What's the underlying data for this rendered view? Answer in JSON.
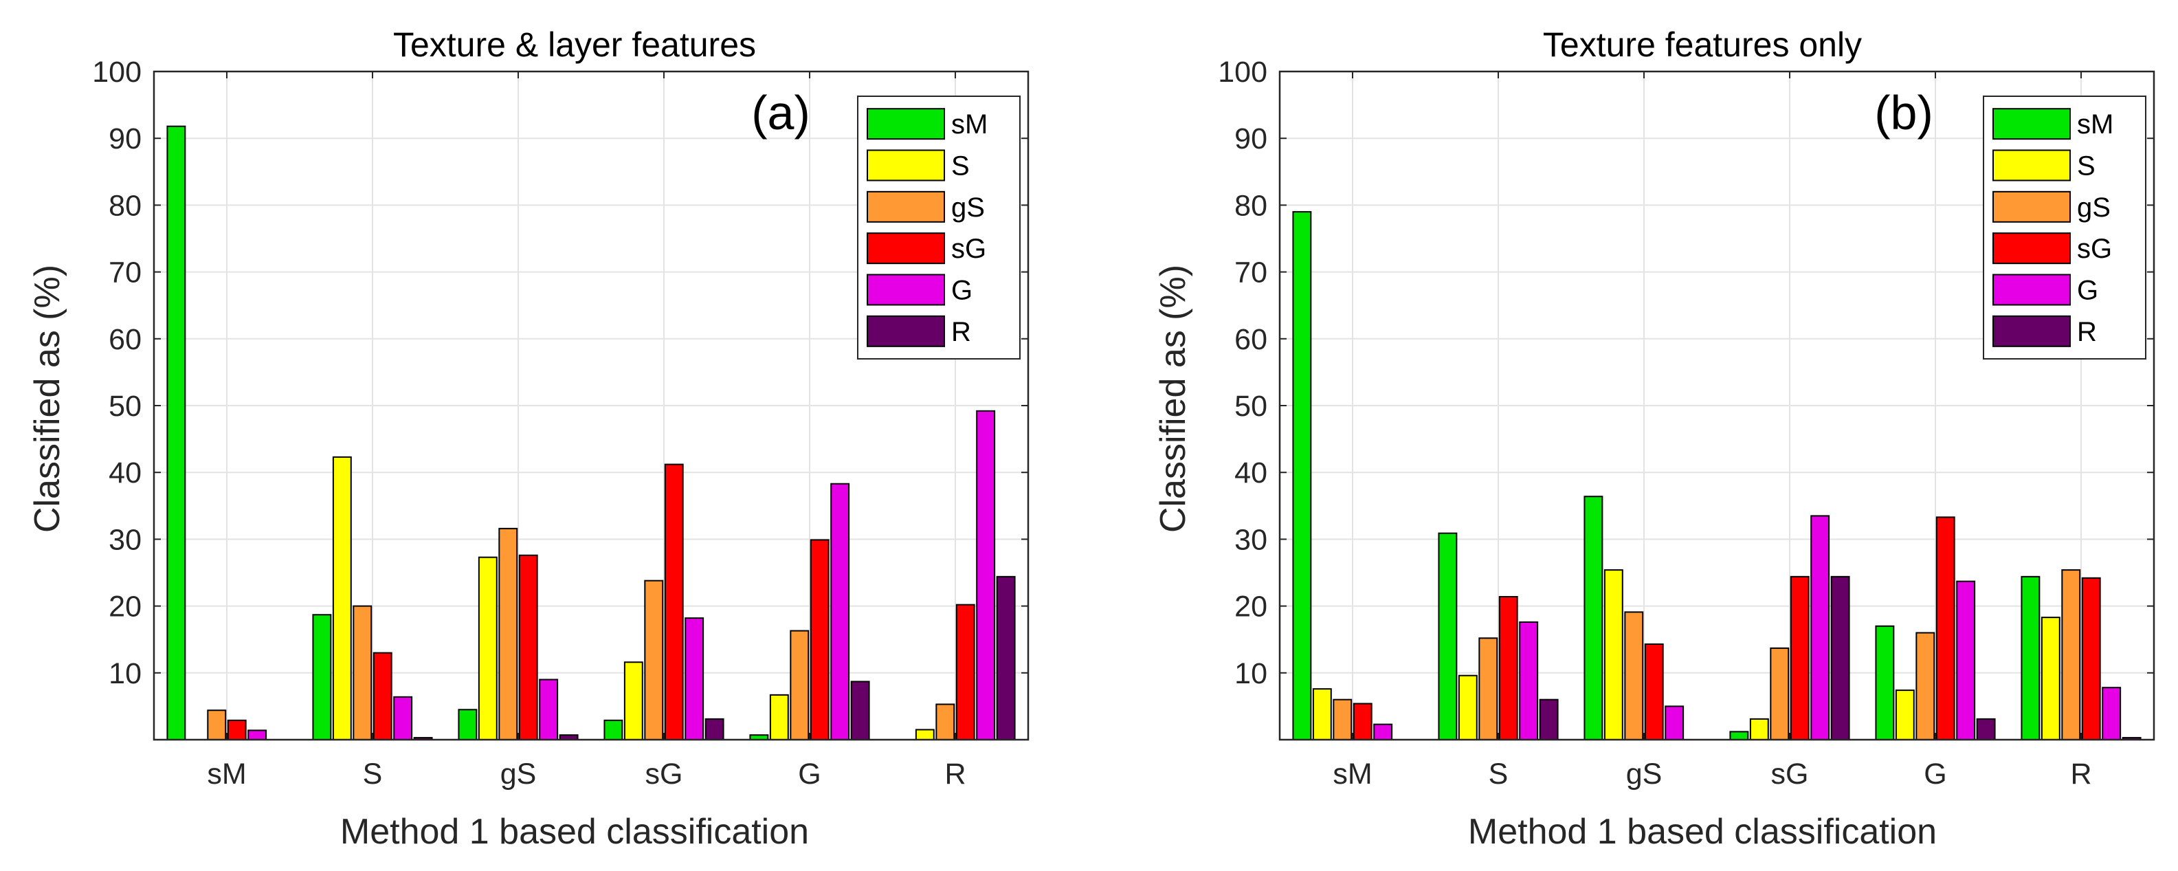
{
  "chart_data": [
    {
      "type": "bar",
      "title": "Texture & layer features",
      "panel_label": "(a)",
      "xlabel": "Method 1 based classification",
      "ylabel": "Classified as (%)",
      "ylim": [
        0,
        100
      ],
      "yticks": [
        10,
        20,
        30,
        40,
        50,
        60,
        70,
        80,
        90,
        100
      ],
      "grid": true,
      "legend_position": "top-right",
      "categories": [
        "sM",
        "S",
        "gS",
        "sG",
        "G",
        "R"
      ],
      "series": [
        {
          "name": "sM",
          "color": "#00e600",
          "values": [
            91.8,
            18.7,
            4.5,
            2.9,
            0.7,
            0
          ]
        },
        {
          "name": "S",
          "color": "#ffff00",
          "values": [
            0,
            42.3,
            27.3,
            11.6,
            6.7,
            1.5
          ]
        },
        {
          "name": "gS",
          "color": "#ff9933",
          "values": [
            4.4,
            20.0,
            31.6,
            23.8,
            16.3,
            5.3
          ]
        },
        {
          "name": "sG",
          "color": "#ff0000",
          "values": [
            2.9,
            13.0,
            27.6,
            41.2,
            29.9,
            20.2
          ]
        },
        {
          "name": "G",
          "color": "#e600e6",
          "values": [
            1.4,
            6.4,
            9.0,
            18.2,
            38.3,
            49.2
          ]
        },
        {
          "name": "R",
          "color": "#660066",
          "values": [
            0,
            0.3,
            0.7,
            3.1,
            8.7,
            24.4
          ]
        }
      ]
    },
    {
      "type": "bar",
      "title": "Texture features only",
      "panel_label": "(b)",
      "xlabel": "Method 1 based classification",
      "ylabel": "Classified as (%)",
      "ylim": [
        0,
        100
      ],
      "yticks": [
        10,
        20,
        30,
        40,
        50,
        60,
        70,
        80,
        90,
        100
      ],
      "grid": true,
      "legend_position": "top-right",
      "categories": [
        "sM",
        "S",
        "gS",
        "sG",
        "G",
        "R"
      ],
      "series": [
        {
          "name": "sM",
          "color": "#00e600",
          "values": [
            79.0,
            30.9,
            36.4,
            1.2,
            17.0,
            24.4
          ]
        },
        {
          "name": "S",
          "color": "#ffff00",
          "values": [
            7.6,
            9.6,
            25.4,
            3.1,
            7.4,
            18.3
          ]
        },
        {
          "name": "gS",
          "color": "#ff9933",
          "values": [
            6.0,
            15.2,
            19.1,
            13.7,
            16.0,
            25.4
          ]
        },
        {
          "name": "sG",
          "color": "#ff0000",
          "values": [
            5.4,
            21.4,
            14.3,
            24.4,
            33.3,
            24.2
          ]
        },
        {
          "name": "G",
          "color": "#e600e6",
          "values": [
            2.3,
            17.6,
            5.0,
            33.5,
            23.7,
            7.8
          ]
        },
        {
          "name": "R",
          "color": "#660066",
          "values": [
            0,
            6.0,
            0,
            24.4,
            3.1,
            0.3
          ]
        }
      ]
    }
  ]
}
